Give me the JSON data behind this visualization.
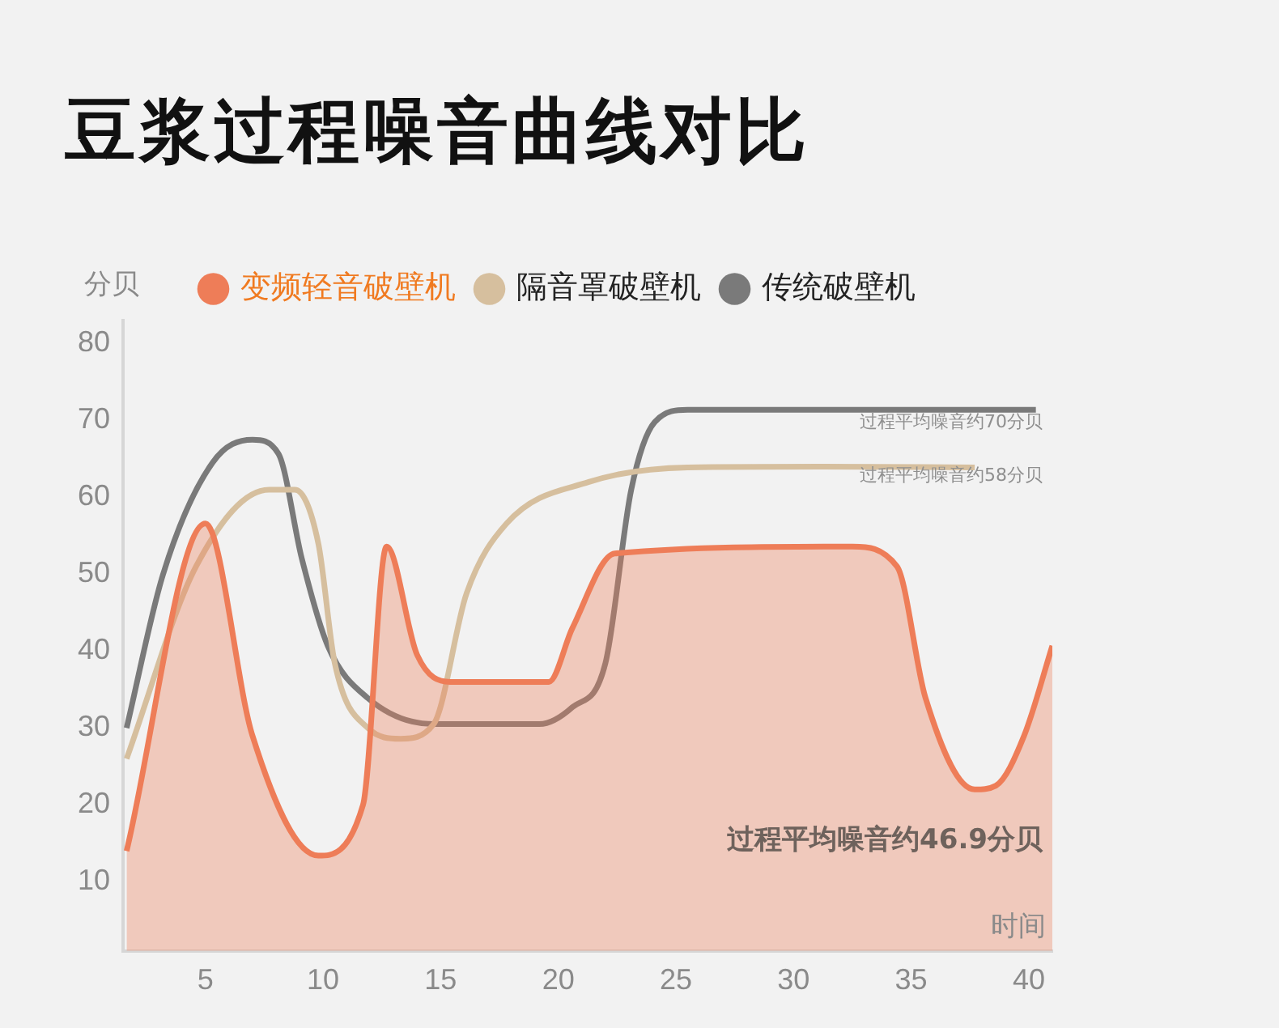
{
  "chart_data": {
    "type": "line",
    "title": "豆浆过程噪音曲线对比",
    "xlabel": "时间",
    "ylabel": "分贝",
    "xlim": [
      1.5,
      41
    ],
    "xticks": [
      5,
      10,
      15,
      20,
      25,
      30,
      35,
      40
    ],
    "ylim": [
      1,
      83
    ],
    "yticks": [
      10,
      20,
      30,
      40,
      50,
      60,
      70,
      80
    ],
    "legend": "top",
    "grid": false,
    "marker": "none",
    "series": [
      {
        "name": "变频轻音破壁机",
        "type": "area",
        "color": "#ee7d58",
        "x": [
          1.65,
          5,
          7,
          9.8,
          11.7,
          12.7,
          14,
          15.4,
          19.6,
          20.6,
          22.4,
          32.5,
          34.4,
          35.6,
          37.7,
          38.6,
          39.8,
          41
        ],
        "values": [
          14,
          56.6,
          29,
          13.4,
          20,
          53.6,
          39.5,
          36,
          36,
          43,
          52.7,
          53.6,
          51,
          34,
          22,
          22.5,
          29,
          40.7
        ]
      },
      {
        "name": "隔音罩破壁机",
        "color": "#d6bf9e",
        "x": [
          1.65,
          4.6,
          7.7,
          8.8,
          9.8,
          10.5,
          11.9,
          13.3,
          14.7,
          16.1,
          17.8,
          21.3,
          25.5,
          31.1,
          37.7
        ],
        "values": [
          26,
          51,
          61,
          61,
          54,
          38.4,
          30,
          28.6,
          30.5,
          47.5,
          56.6,
          62,
          63.9,
          64,
          63.9
        ]
      },
      {
        "name": "传统破壁机",
        "color": "#7a7a7a",
        "x": [
          1.65,
          3.2,
          5.3,
          7,
          8.1,
          9.1,
          10.2,
          11.9,
          14.7,
          19.2,
          20.6,
          22,
          23.1,
          24.1,
          25.5,
          40.3
        ],
        "values": [
          30,
          50,
          64.5,
          67.5,
          65.7,
          52,
          40.7,
          33.9,
          30.5,
          30.5,
          32.7,
          38.4,
          61,
          69.8,
          71.4,
          71.4
        ]
      }
    ],
    "annotations": [
      "过程平均噪音约70分贝",
      "过程平均噪音约58分贝",
      "过程平均噪音约46.9分贝"
    ]
  }
}
